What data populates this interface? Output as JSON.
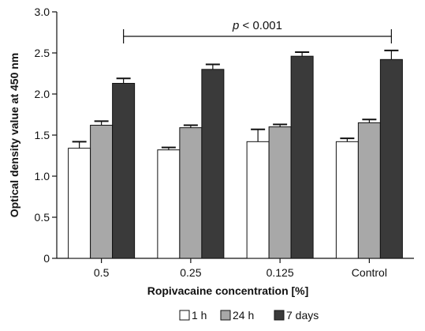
{
  "chart_data": {
    "type": "bar",
    "title": "",
    "xlabel": "Ropivacaine concentration [%]",
    "ylabel": "Optical density value at 450 nm",
    "ylim": [
      0,
      3.0
    ],
    "yticks": [
      "0",
      "0.5",
      "1.0",
      "1.5",
      "2.0",
      "2.5",
      "3.0"
    ],
    "categories": [
      "0.5",
      "0.25",
      "0.125",
      "Control"
    ],
    "series": [
      {
        "name": "1 h",
        "color": "#ffffff",
        "values": [
          1.34,
          1.32,
          1.42,
          1.42
        ],
        "errors": [
          0.08,
          0.03,
          0.15,
          0.04
        ]
      },
      {
        "name": "24 h",
        "color": "#a8a8a8",
        "values": [
          1.62,
          1.59,
          1.6,
          1.65
        ],
        "errors": [
          0.05,
          0.03,
          0.03,
          0.04
        ]
      },
      {
        "name": "7 days",
        "color": "#3a3a3a",
        "values": [
          2.13,
          2.3,
          2.46,
          2.42
        ],
        "errors": [
          0.06,
          0.06,
          0.05,
          0.11
        ]
      }
    ],
    "grid": false,
    "legend": "bottom",
    "annotation": {
      "prefix": "p",
      "text": " < 0.001",
      "from": "0.5",
      "to": "Control"
    }
  }
}
